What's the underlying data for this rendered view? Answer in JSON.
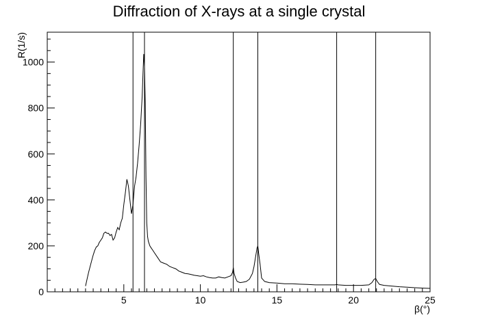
{
  "chart_data": {
    "type": "line",
    "title": "Diffraction of X-rays at a single crystal",
    "xlabel": "β(°)",
    "ylabel": "R(1/s)",
    "xlim": [
      0,
      25
    ],
    "ylim": [
      0,
      1130
    ],
    "grid": false,
    "x_ticks": [
      5,
      10,
      15,
      20,
      25
    ],
    "x_tick_labels": [
      "5",
      "10",
      "15",
      "20",
      "25"
    ],
    "y_ticks": [
      0,
      200,
      400,
      600,
      800,
      1000
    ],
    "y_tick_labels": [
      "0",
      "200",
      "400",
      "600",
      "800",
      "1000"
    ],
    "vertical_lines": [
      5.6,
      6.35,
      12.15,
      13.75,
      18.9,
      21.45
    ],
    "series": [
      {
        "color": "#000000",
        "x": [
          2.5,
          2.6,
          2.7,
          2.8,
          2.9,
          3.0,
          3.1,
          3.2,
          3.3,
          3.4,
          3.5,
          3.6,
          3.7,
          3.8,
          3.9,
          4.0,
          4.1,
          4.2,
          4.3,
          4.4,
          4.5,
          4.6,
          4.7,
          4.8,
          4.9,
          5.0,
          5.1,
          5.2,
          5.3,
          5.4,
          5.5,
          5.6,
          5.65,
          5.7,
          5.8,
          5.9,
          6.0,
          6.1,
          6.2,
          6.25,
          6.3,
          6.35,
          6.4,
          6.45,
          6.5,
          6.55,
          6.6,
          6.7,
          6.8,
          6.9,
          7.0,
          7.2,
          7.4,
          7.6,
          7.8,
          8.0,
          8.2,
          8.4,
          8.6,
          8.8,
          9.0,
          9.2,
          9.4,
          9.6,
          9.8,
          10.0,
          10.2,
          10.4,
          10.6,
          10.8,
          11.0,
          11.2,
          11.4,
          11.6,
          11.8,
          12.0,
          12.1,
          12.15,
          12.2,
          12.3,
          12.4,
          12.6,
          12.8,
          13.0,
          13.2,
          13.4,
          13.5,
          13.6,
          13.7,
          13.75,
          13.8,
          13.9,
          14.0,
          14.2,
          14.5,
          15.0,
          15.5,
          16.0,
          16.5,
          17.0,
          17.5,
          18.0,
          18.5,
          18.8,
          18.9,
          19.0,
          19.5,
          20.0,
          20.5,
          21.0,
          21.2,
          21.35,
          21.45,
          21.55,
          21.7,
          22.0,
          22.5,
          23.0,
          23.5,
          24.0,
          24.5,
          25.0
        ],
        "y": [
          25,
          55,
          85,
          110,
          135,
          160,
          180,
          195,
          200,
          215,
          225,
          235,
          255,
          260,
          255,
          255,
          245,
          250,
          225,
          235,
          260,
          280,
          270,
          300,
          320,
          380,
          430,
          490,
          460,
          400,
          340,
          380,
          420,
          460,
          500,
          560,
          640,
          730,
          850,
          950,
          1035,
          980,
          820,
          500,
          300,
          240,
          220,
          200,
          190,
          180,
          170,
          150,
          130,
          125,
          120,
          110,
          105,
          100,
          90,
          85,
          80,
          78,
          75,
          72,
          70,
          68,
          70,
          65,
          62,
          60,
          60,
          65,
          62,
          60,
          65,
          70,
          85,
          105,
          80,
          60,
          45,
          40,
          42,
          45,
          55,
          80,
          110,
          150,
          190,
          200,
          170,
          120,
          60,
          45,
          40,
          38,
          35,
          35,
          33,
          32,
          30,
          30,
          30,
          30,
          32,
          30,
          28,
          28,
          28,
          30,
          40,
          55,
          58,
          45,
          32,
          28,
          25,
          22,
          20,
          18,
          16,
          15
        ]
      }
    ]
  }
}
